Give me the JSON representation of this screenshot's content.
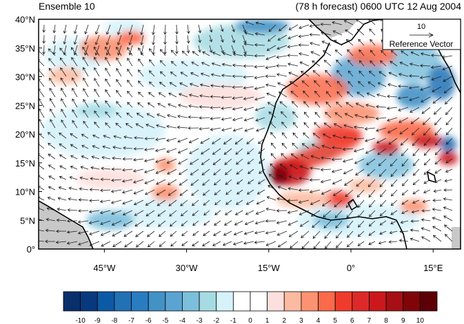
{
  "header": {
    "left": "Ensemble 10",
    "right": "(78 h forecast) 0600 UTC 12 Aug 2004"
  },
  "map": {
    "lat_labels": [
      "40°N",
      "35°N",
      "30°N",
      "25°N",
      "20°N",
      "15°N",
      "10°N",
      "5°N",
      "0°"
    ],
    "lon_labels": [
      "45°W",
      "30°W",
      "15°W",
      "0°",
      "15°E"
    ],
    "lat_range": [
      0,
      40
    ],
    "lon_range": [
      -57,
      20
    ]
  },
  "reference_vector": {
    "value": "10",
    "label": "Reference Vector"
  },
  "colorbar": {
    "labels": [
      "-10",
      "-9",
      "-8",
      "-7",
      "-6",
      "-5",
      "-4",
      "-3",
      "-2",
      "-1",
      "0",
      "1",
      "2",
      "3",
      "4",
      "5",
      "6",
      "7",
      "8",
      "9",
      "10"
    ],
    "colors": [
      "#08306b",
      "#08397e",
      "#0c5aa6",
      "#2171b5",
      "#2a7cc0",
      "#4292c6",
      "#5ba3d0",
      "#7cbfdc",
      "#a6dbe3",
      "#d6f2fb",
      "#ffffff",
      "#ffffff",
      "#fde0dd",
      "#fcbba1",
      "#fc9272",
      "#fb6a4a",
      "#ef3b2c",
      "#dc2a2a",
      "#cb181d",
      "#a50f15",
      "#7f0509",
      "#5c0006"
    ]
  },
  "colors": {
    "land_gray": "#c8c8c8",
    "coast": "#000000",
    "arrow": "#202020"
  }
}
